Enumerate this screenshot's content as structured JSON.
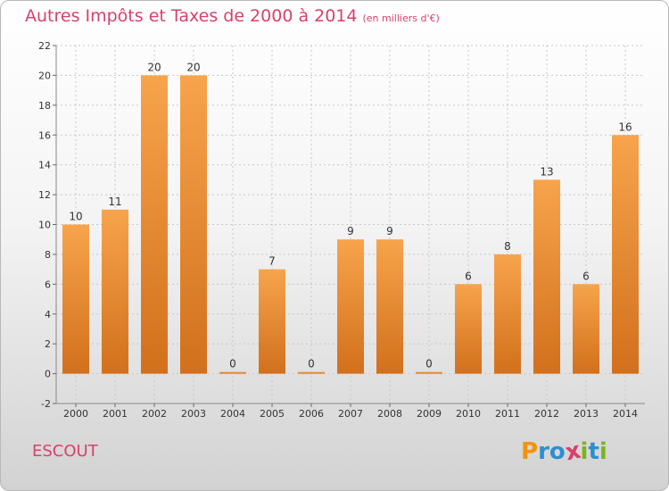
{
  "title": "Autres Impôts et Taxes de 2000 à 2014",
  "unit": "(en milliers d'€)",
  "commune": "ESCOUT",
  "logo": {
    "text": "Proxiti",
    "letters": [
      {
        "ch": "P",
        "color": "#f29400"
      },
      {
        "ch": "r",
        "color": "#2d8fd1"
      },
      {
        "ch": "o",
        "color": "#2d8fd1"
      },
      {
        "ch": "x",
        "color": "#d9406b"
      },
      {
        "ch": "i",
        "color": "#7ab51d"
      },
      {
        "ch": "t",
        "color": "#2d8fd1"
      },
      {
        "ch": "i",
        "color": "#7ab51d"
      }
    ]
  },
  "chart_data": {
    "type": "bar",
    "title": "Autres Impôts et Taxes de 2000 à 2014",
    "subtitle": "(en milliers d'€)",
    "xlabel": "",
    "ylabel": "",
    "categories": [
      "2000",
      "2001",
      "2002",
      "2003",
      "2004",
      "2005",
      "2006",
      "2007",
      "2008",
      "2009",
      "2010",
      "2011",
      "2012",
      "2013",
      "2014"
    ],
    "values": [
      10,
      11,
      20,
      20,
      0,
      7,
      0,
      9,
      9,
      0,
      6,
      8,
      13,
      6,
      16
    ],
    "ylim": [
      -2,
      22
    ],
    "yticks": [
      -2,
      0,
      2,
      4,
      6,
      8,
      10,
      12,
      14,
      16,
      18,
      20,
      22
    ],
    "grid": true,
    "colors": {
      "bar_light": "#f7a44c",
      "bar_dark": "#d2701c",
      "grid": "#c8c8c8",
      "text": "#333333"
    }
  }
}
